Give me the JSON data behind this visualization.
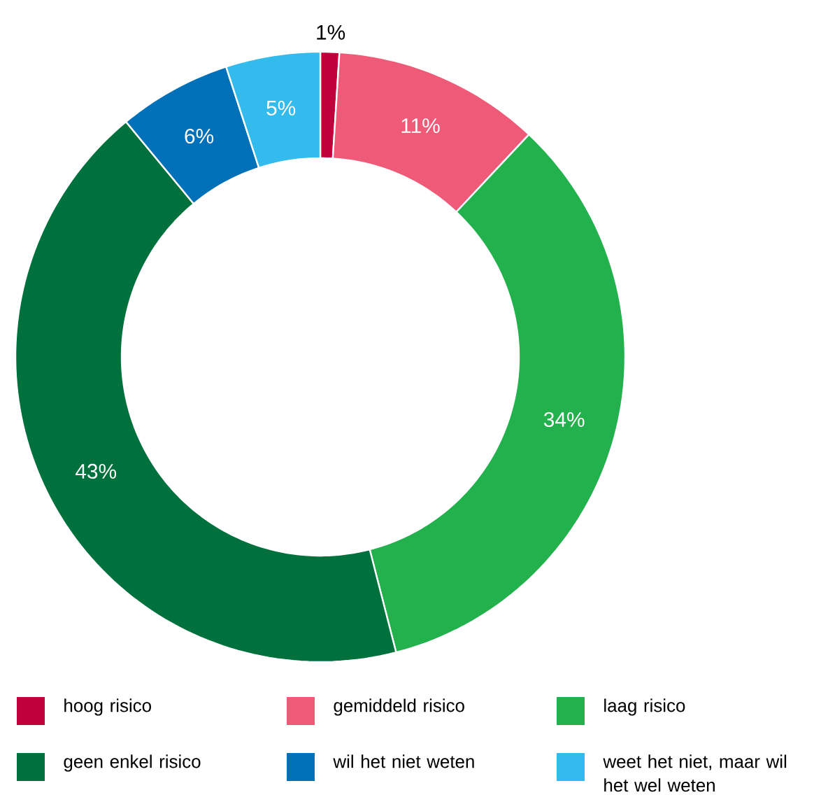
{
  "chart_data": {
    "type": "donut",
    "categories": [
      "hoog risico",
      "gemiddeld risico",
      "laag risico",
      "geen enkel risico",
      "wil het niet weten",
      "weet het niet, maar wil het wel weten"
    ],
    "values": [
      1,
      11,
      34,
      43,
      6,
      5
    ],
    "value_labels": [
      "1%",
      "11%",
      "34%",
      "43%",
      "6%",
      "5%"
    ],
    "colors": [
      "#c0003c",
      "#ee5a78",
      "#22b14c",
      "#00703c",
      "#0071b9",
      "#33bbee"
    ],
    "legend": "bottom"
  }
}
